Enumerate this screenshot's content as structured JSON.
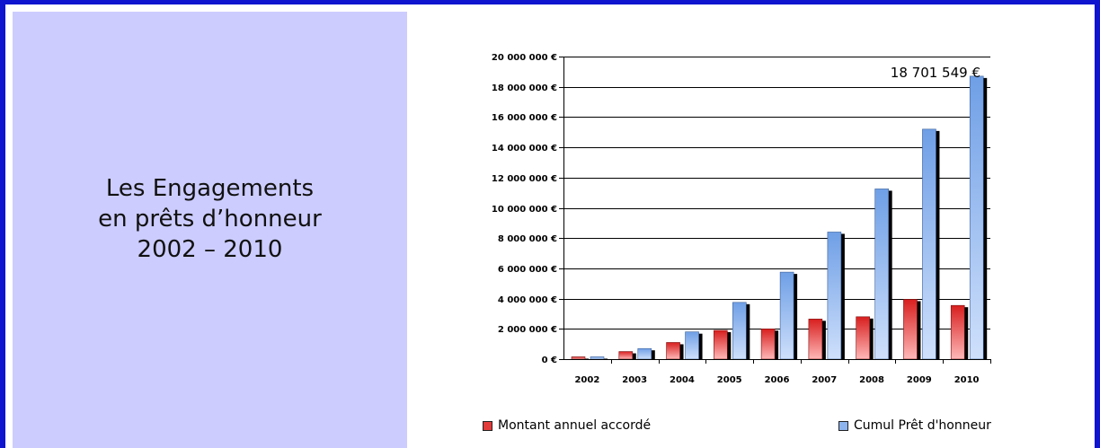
{
  "panel": {
    "title_lines": [
      "Les Engagements",
      "en prêts d’honneur",
      "2002 – 2010"
    ]
  },
  "colors": {
    "frame": "#0f14cf",
    "panel_bg": "#ccccff",
    "series_annual": "#e33a3a",
    "series_cumul": "#8db4ee"
  },
  "chart_data": {
    "type": "bar",
    "categories": [
      "2002",
      "2003",
      "2004",
      "2005",
      "2006",
      "2007",
      "2008",
      "2009",
      "2010"
    ],
    "series": [
      {
        "name": "Montant annuel accordé",
        "values": [
          150000,
          500000,
          1100000,
          1900000,
          2000000,
          2650000,
          2800000,
          3950000,
          3550000
        ]
      },
      {
        "name": "Cumul Prêt d'honneur",
        "values": [
          150000,
          700000,
          1800000,
          3750000,
          5750000,
          8400000,
          11250000,
          15200000,
          18701549
        ]
      }
    ],
    "ylim": [
      0,
      20000000
    ],
    "yticks": [
      "0 €",
      "2 000 000 €",
      "4 000 000 €",
      "6 000 000 €",
      "8 000 000 €",
      "10 000 000 €",
      "12 000 000 €",
      "14 000 000 €",
      "16 000 000 €",
      "18 000 000 €",
      "20 000 000 €"
    ],
    "annotation": "18 701 549 €",
    "grid": true,
    "legend_position": "bottom"
  }
}
